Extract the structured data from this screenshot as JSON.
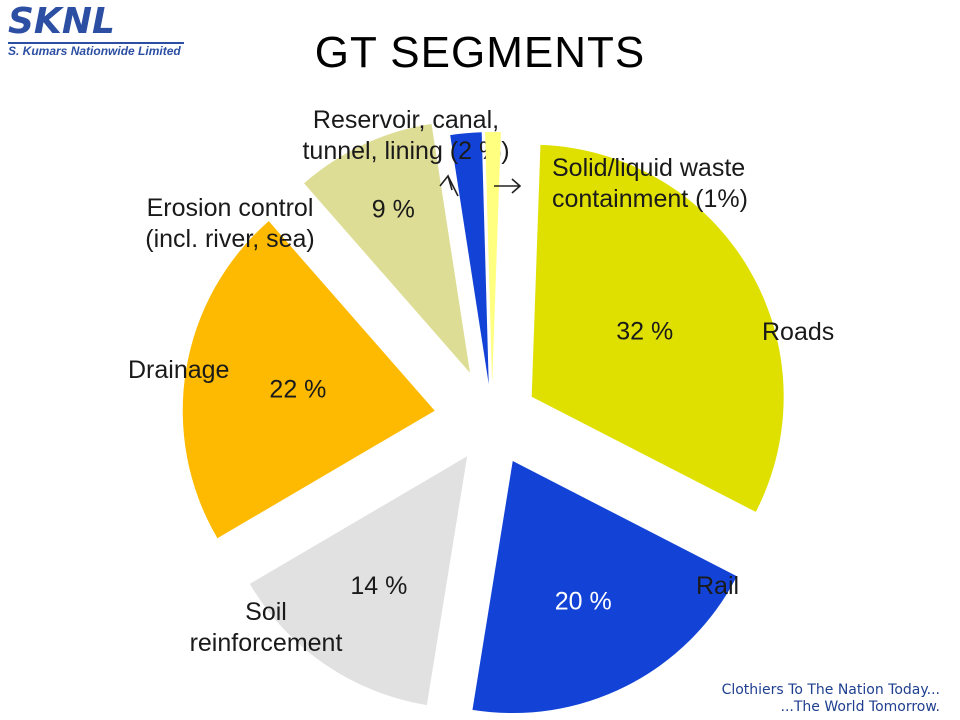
{
  "brand": {
    "logo_word": "SKNL",
    "logo_subtitle": "S. Kumars Nationwide Limited",
    "tagline_line1": "Clothiers To The Nation Today...",
    "tagline_line2": "...The World Tomorrow.",
    "color": "#2c4fa3"
  },
  "slide": {
    "title": "GT SEGMENTS"
  },
  "chart_data": {
    "type": "pie",
    "title": "GT SEGMENTS",
    "exploded": true,
    "slices": [
      {
        "label_lines": [
          "Roads"
        ],
        "value": 32,
        "value_label": "32 %",
        "color": "#dfe000"
      },
      {
        "label_lines": [
          "Rail"
        ],
        "value": 20,
        "value_label": "20 %",
        "color": "#1243d6"
      },
      {
        "label_lines": [
          "Soil",
          "reinforcement"
        ],
        "value": 14,
        "value_label": "14 %",
        "color": "#e1e1e1"
      },
      {
        "label_lines": [
          "Drainage"
        ],
        "value": 22,
        "value_label": "22 %",
        "color": "#fdba00"
      },
      {
        "label_lines": [
          "Erosion control",
          "(incl. river, sea)"
        ],
        "value": 9,
        "value_label": "9 %",
        "color": "#dedd96"
      },
      {
        "label_lines": [
          "Reservoir, canal,",
          "tunnel, lining (2 %)"
        ],
        "value": 2,
        "value_label": "",
        "color": "#1243d6"
      },
      {
        "label_lines": [
          "Solid/liquid waste",
          "containment (1%)"
        ],
        "value": 1,
        "value_label": "",
        "color": "#ffff80"
      }
    ]
  }
}
